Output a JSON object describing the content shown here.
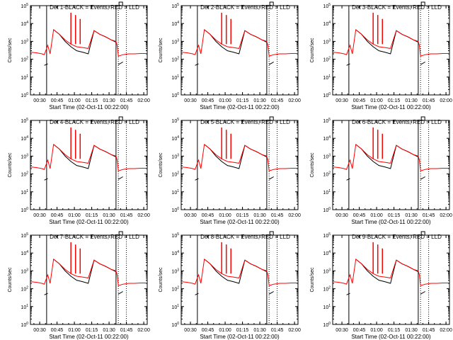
{
  "chart_data": {
    "type": "line",
    "yscale": "log",
    "ylim": [
      1,
      100000
    ],
    "xlim": [
      "00:22:00",
      "02:03:00"
    ],
    "xticks": [
      "00:30",
      "00:45",
      "01:00",
      "01:15",
      "01:30",
      "01:45",
      "02:00"
    ],
    "yticks": [
      "10^0",
      "10^1",
      "10^2",
      "10^3",
      "10^4",
      "10^5"
    ],
    "ylabel": "Counts/sec",
    "xlabel": "Start Time (02-Oct-11 00:22:00)",
    "grid": false,
    "colors": {
      "events": "#000000",
      "lld": "#ff0000"
    },
    "x": [
      "00:22",
      "00:27",
      "00:32",
      "00:34",
      "00:37",
      "00:39",
      "00:42",
      "00:47",
      "00:52",
      "00:57",
      "01:02",
      "01:07",
      "01:12",
      "01:17",
      "01:22",
      "01:27",
      "01:32",
      "01:36",
      "01:37",
      "01:38",
      "01:42",
      "01:47",
      "01:52",
      "01:57",
      "02:02"
    ],
    "panels": [
      {
        "title": "Det 1-BLACK = Events, RED = LLD",
        "series": [
          {
            "name": "Events",
            "values": [
              null,
              null,
              null,
              45,
              55,
              null,
              4500,
              2500,
              1000,
              500,
              300,
              250,
              200,
              4000,
              2500,
              1800,
              1200,
              900,
              null,
              50,
              70,
              null,
              null,
              null,
              null
            ]
          },
          {
            "name": "LLD",
            "values": [
              250,
              230,
              200,
              180,
              600,
              200,
              4500,
              2500,
              1200,
              700,
              500,
              450,
              400,
              4000,
              2500,
              1800,
              1200,
              1000,
              600,
              150,
              180,
              200,
              200,
              210,
              210
            ]
          }
        ]
      },
      {
        "title": "Det 2-BLACK = Events, RED = LLD",
        "series": [
          {
            "name": "Events",
            "values": [
              null,
              null,
              null,
              45,
              55,
              null,
              4500,
              2500,
              1000,
              500,
              300,
              250,
              200,
              4000,
              2500,
              1800,
              1200,
              900,
              null,
              50,
              70,
              null,
              null,
              null,
              null
            ]
          },
          {
            "name": "LLD",
            "values": [
              250,
              230,
              200,
              180,
              600,
              200,
              4500,
              2500,
              1200,
              700,
              500,
              450,
              400,
              4000,
              2500,
              1800,
              1200,
              1000,
              600,
              150,
              180,
              200,
              200,
              210,
              210
            ]
          }
        ]
      },
      {
        "title": "Det 3-BLACK = Events, RED = LLD",
        "series": [
          {
            "name": "Events",
            "values": [
              null,
              null,
              null,
              45,
              55,
              null,
              4500,
              2500,
              1000,
              500,
              300,
              250,
              200,
              4000,
              2500,
              1800,
              1200,
              900,
              null,
              50,
              70,
              null,
              null,
              null,
              null
            ]
          },
          {
            "name": "LLD",
            "values": [
              250,
              230,
              200,
              180,
              600,
              200,
              4500,
              2500,
              1200,
              700,
              500,
              450,
              400,
              4000,
              2500,
              1800,
              1200,
              1000,
              600,
              150,
              180,
              200,
              200,
              210,
              210
            ]
          }
        ]
      },
      {
        "title": "Det 4-BLACK = Events, RED = LLD",
        "series": [
          {
            "name": "Events",
            "values": [
              null,
              null,
              null,
              45,
              55,
              null,
              4500,
              2500,
              1000,
              500,
              300,
              250,
              200,
              4000,
              2500,
              1800,
              1200,
              900,
              null,
              50,
              70,
              null,
              null,
              null,
              null
            ]
          },
          {
            "name": "LLD",
            "values": [
              250,
              230,
              200,
              180,
              600,
              200,
              4500,
              2500,
              1200,
              700,
              500,
              450,
              400,
              4000,
              2500,
              1800,
              1200,
              1000,
              600,
              150,
              180,
              200,
              200,
              210,
              210
            ]
          }
        ]
      },
      {
        "title": "Det 5-BLACK = Events, RED = LLD",
        "series": [
          {
            "name": "Events",
            "values": [
              null,
              null,
              null,
              45,
              55,
              null,
              4500,
              2500,
              1000,
              500,
              300,
              250,
              200,
              4000,
              2500,
              1800,
              1200,
              900,
              null,
              50,
              70,
              null,
              null,
              null,
              null
            ]
          },
          {
            "name": "LLD",
            "values": [
              250,
              230,
              200,
              180,
              600,
              200,
              4500,
              2500,
              1200,
              700,
              500,
              450,
              400,
              4000,
              2500,
              1800,
              1200,
              1000,
              600,
              150,
              180,
              200,
              200,
              210,
              210
            ]
          }
        ]
      },
      {
        "title": "Det 6-BLACK = Events, RED = LLD",
        "series": [
          {
            "name": "Events",
            "values": [
              null,
              null,
              null,
              45,
              55,
              null,
              4500,
              2500,
              1000,
              500,
              300,
              250,
              200,
              4000,
              2500,
              1800,
              1200,
              900,
              null,
              50,
              70,
              null,
              null,
              null,
              null
            ]
          },
          {
            "name": "LLD",
            "values": [
              250,
              230,
              200,
              180,
              600,
              200,
              4500,
              2500,
              1200,
              700,
              500,
              450,
              400,
              4000,
              2500,
              1800,
              1200,
              1000,
              600,
              150,
              180,
              200,
              200,
              210,
              210
            ]
          }
        ]
      },
      {
        "title": "Det 7-BLACK = Events, RED = LLD",
        "series": [
          {
            "name": "Events",
            "values": [
              null,
              null,
              null,
              45,
              55,
              null,
              4500,
              2500,
              1000,
              500,
              300,
              250,
              200,
              4000,
              2500,
              1800,
              1200,
              900,
              null,
              50,
              70,
              null,
              null,
              null,
              null
            ]
          },
          {
            "name": "LLD",
            "values": [
              250,
              230,
              200,
              180,
              600,
              200,
              4500,
              2500,
              1200,
              700,
              500,
              450,
              400,
              4000,
              2500,
              1800,
              1200,
              1000,
              600,
              150,
              180,
              200,
              200,
              210,
              210
            ]
          }
        ]
      },
      {
        "title": "Det 8-BLACK = Events, RED = LLD",
        "series": [
          {
            "name": "Events",
            "values": [
              null,
              null,
              null,
              45,
              55,
              null,
              4500,
              2500,
              1000,
              500,
              300,
              250,
              200,
              4000,
              2500,
              1800,
              1200,
              900,
              null,
              50,
              70,
              null,
              null,
              null,
              null
            ]
          },
          {
            "name": "LLD",
            "values": [
              250,
              230,
              200,
              180,
              600,
              200,
              4500,
              2500,
              1200,
              700,
              500,
              450,
              400,
              4000,
              2500,
              1800,
              1200,
              1000,
              600,
              150,
              180,
              200,
              200,
              210,
              210
            ]
          }
        ]
      },
      {
        "title": "Det 9-BLACK = Events, RED = LLD",
        "series": [
          {
            "name": "Events",
            "values": [
              null,
              null,
              null,
              45,
              55,
              null,
              4500,
              2500,
              1000,
              500,
              300,
              250,
              200,
              4000,
              2500,
              1800,
              1200,
              900,
              null,
              50,
              70,
              null,
              null,
              null,
              null
            ]
          },
          {
            "name": "LLD",
            "values": [
              250,
              230,
              200,
              180,
              600,
              200,
              4500,
              2500,
              1200,
              700,
              500,
              450,
              400,
              4000,
              2500,
              1800,
              1200,
              1000,
              600,
              150,
              180,
              200,
              200,
              210,
              210
            ]
          }
        ]
      }
    ],
    "spikes": {
      "times": [
        "00:57",
        "01:01",
        "01:05"
      ],
      "values": [
        40000,
        30000,
        18000
      ]
    },
    "markers": {
      "solid": [
        "00:36",
        "01:36"
      ],
      "dotted": [
        "01:38",
        "01:45"
      ]
    }
  }
}
